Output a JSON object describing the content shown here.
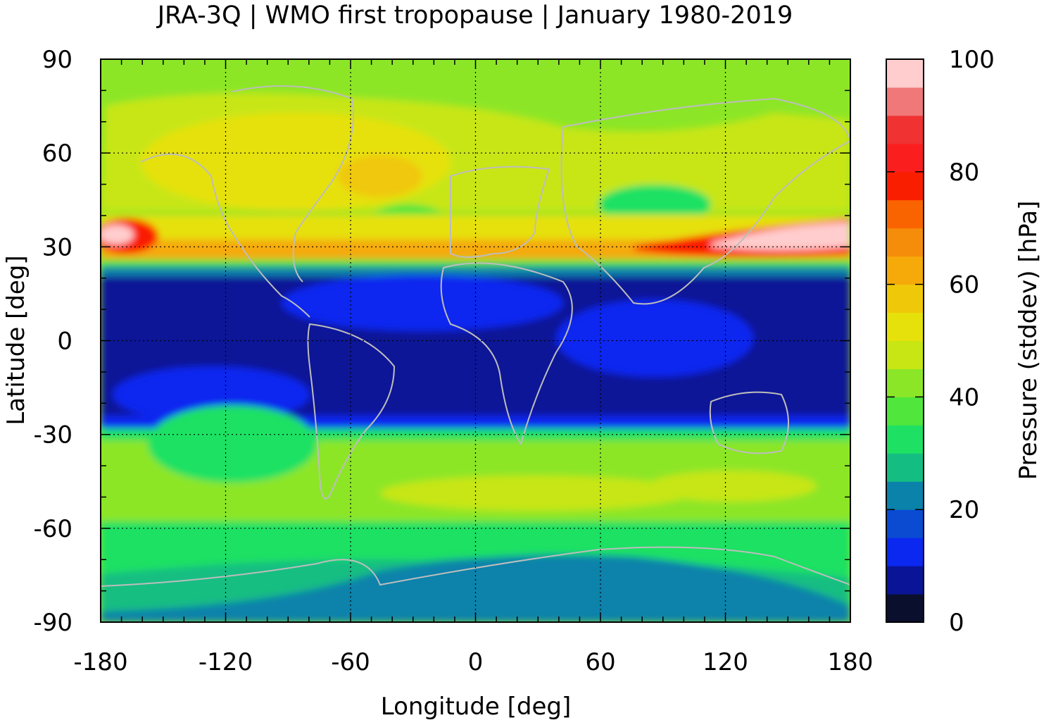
{
  "title": "JRA-3Q | WMO first tropopause | January 1980-2019",
  "map": {
    "xlabel": "Longitude [deg]",
    "ylabel": "Latitude [deg]",
    "xlim": [
      -180,
      180
    ],
    "ylim": [
      -90,
      90
    ],
    "xticks": [
      "-180",
      "-120",
      "-60",
      "0",
      "60",
      "120",
      "180"
    ],
    "yticks": [
      "90",
      "60",
      "30",
      "0",
      "-30",
      "-60",
      "-90"
    ],
    "xtick_values": [
      -180,
      -120,
      -60,
      0,
      60,
      120,
      180
    ],
    "ytick_values": [
      90,
      60,
      30,
      0,
      -30,
      -60,
      -90
    ],
    "grid": true,
    "coastlines_color": "#bdbdbd",
    "field": "Pressure standard deviation of WMO first tropopause, January climatology"
  },
  "colorbar": {
    "label": "Pressure (stddev) [hPa]",
    "ticks": [
      "100",
      "80",
      "60",
      "40",
      "20",
      "0"
    ],
    "tick_values": [
      100,
      80,
      60,
      40,
      20,
      0
    ],
    "range": [
      0,
      100
    ],
    "step": 5,
    "colors": [
      "#0a0f2e",
      "#0a1496",
      "#0a28f0",
      "#0a4bd2",
      "#0a82aa",
      "#14be82",
      "#1ee164",
      "#50e63c",
      "#8ce628",
      "#c8e614",
      "#e6e10a",
      "#f0c80a",
      "#f5aa0a",
      "#f58c0a",
      "#fa6400",
      "#fa1e00",
      "#fa1e1e",
      "#f03232",
      "#f07878",
      "#ffcdcd"
    ]
  }
}
